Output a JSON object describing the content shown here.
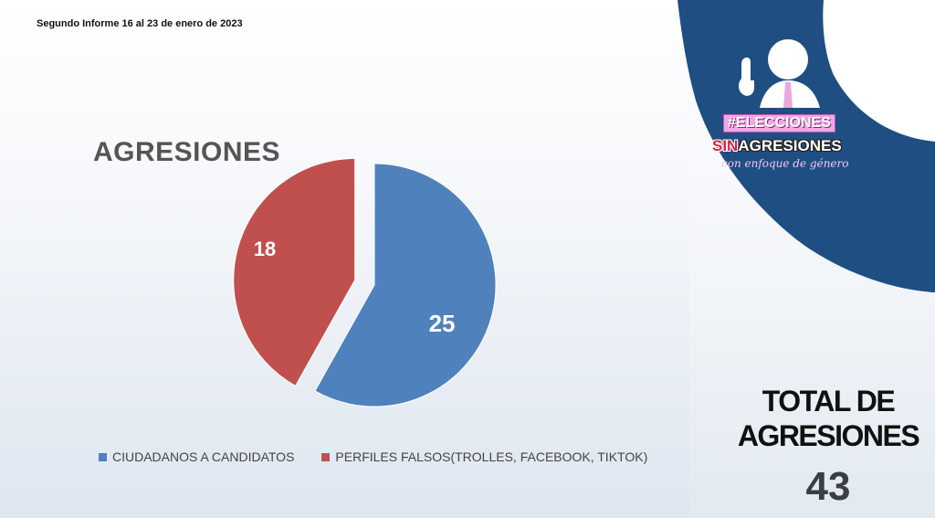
{
  "header": {
    "report": "Segundo Informe 16 al 23 de enero de 2023"
  },
  "logo": {
    "line1": "#ELECCIONES",
    "line2_a": "SIN",
    "line2_b": "AGRESIONES",
    "line3": "con enfoque de género"
  },
  "total": {
    "label_line1": "TOTAL DE",
    "label_line2": "AGRESIONES",
    "value": "43"
  },
  "colors": {
    "blue": "#4f81bd",
    "red": "#c0504d",
    "navy": "#1f4e82"
  },
  "chart_data": {
    "type": "pie",
    "title": "AGRESIONES",
    "slices": [
      {
        "name": "CIUDADANOS A CANDIDATOS",
        "value": 25,
        "color": "#4f81bd",
        "exploded": false
      },
      {
        "name": "PERFILES FALSOS(TROLLES, FACEBOOK, TIKTOK)",
        "value": 18,
        "color": "#c0504d",
        "exploded": true
      }
    ],
    "legend_position": "bottom"
  }
}
